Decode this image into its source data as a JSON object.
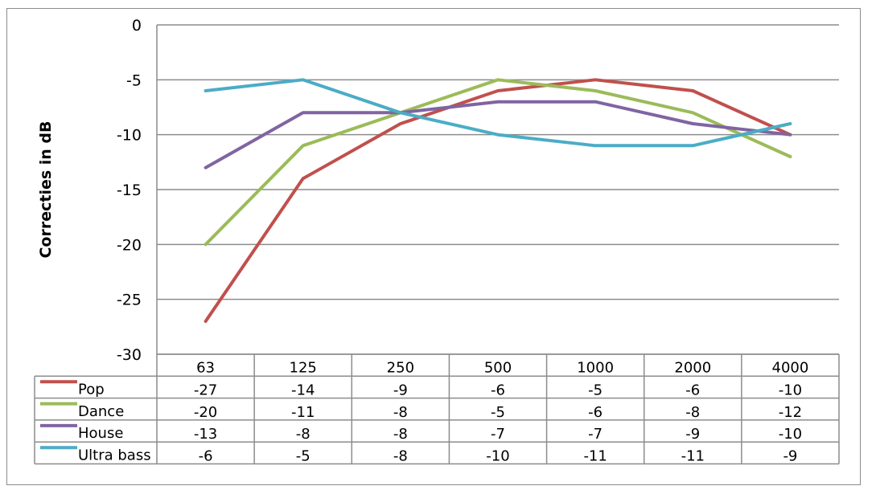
{
  "chart_data": {
    "type": "line",
    "title": "",
    "xlabel": "",
    "ylabel": "Correcties in dB",
    "ylim": [
      -30,
      0
    ],
    "yticks": [
      0,
      -5,
      -10,
      -15,
      -20,
      -25,
      -30
    ],
    "grid": true,
    "legend": "data-table-left",
    "categories": [
      "63",
      "125",
      "250",
      "500",
      "1000",
      "2000",
      "4000"
    ],
    "series": [
      {
        "name": "Pop",
        "color": "#c0504d",
        "values": [
          -27,
          -14,
          -9,
          -6,
          -5,
          -6,
          -10
        ]
      },
      {
        "name": "Dance",
        "color": "#9bbb59",
        "values": [
          -20,
          -11,
          -8,
          -5,
          -6,
          -8,
          -12
        ]
      },
      {
        "name": "House",
        "color": "#8064a2",
        "values": [
          -13,
          -8,
          -8,
          -7,
          -7,
          -9,
          -10
        ]
      },
      {
        "name": "Ultra bass",
        "color": "#4bacc6",
        "values": [
          -6,
          -5,
          -8,
          -10,
          -11,
          -11,
          -9
        ]
      }
    ]
  }
}
